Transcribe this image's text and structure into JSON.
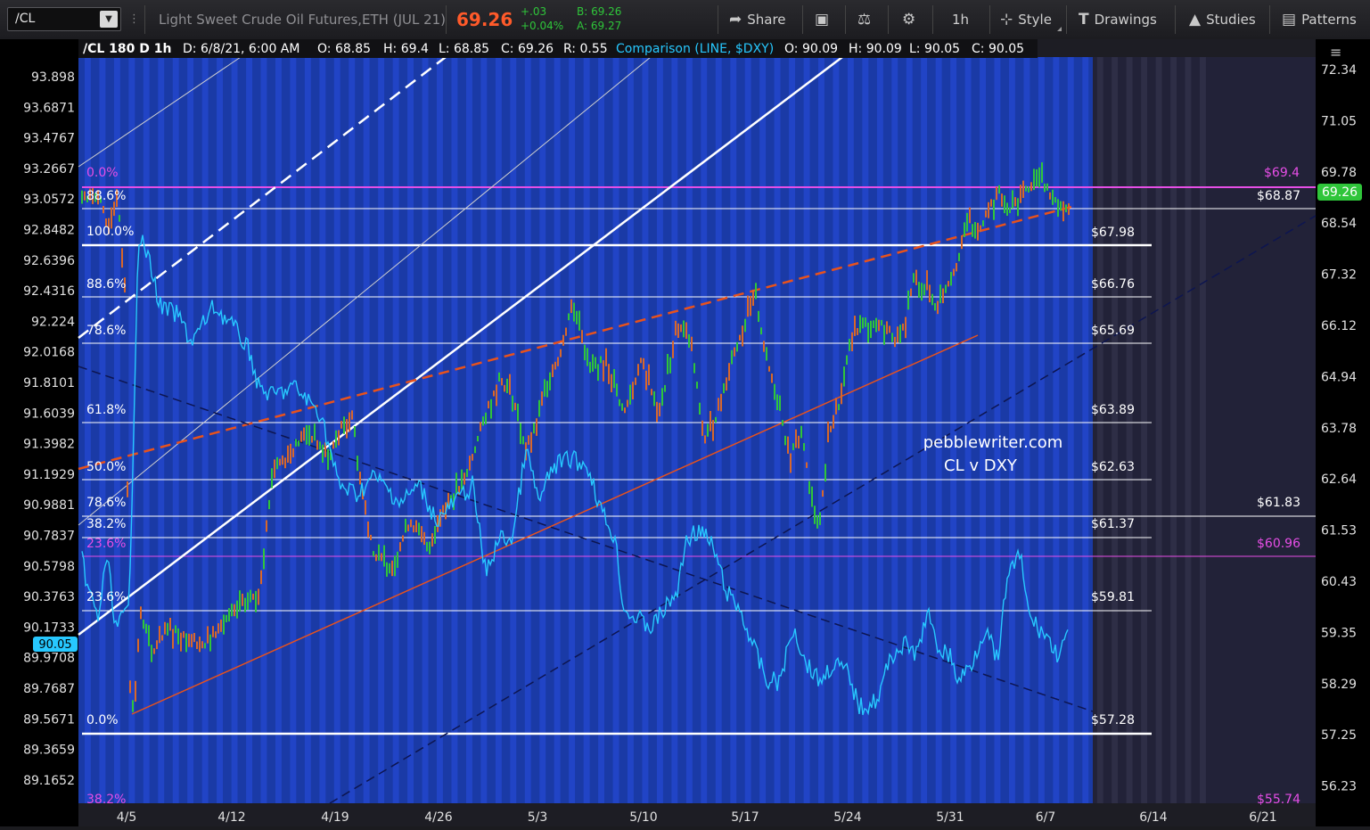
{
  "toolbar": {
    "symbol": "/CL",
    "title": "Light Sweet Crude Oil Futures,ETH (JUL 21)",
    "last": "69.26",
    "change": "+.03",
    "change_pct": "+0.04%",
    "bid": "B: 69.26",
    "ask": "A: 69.27",
    "share": "Share",
    "interval": "1h",
    "style": "Style",
    "drawings": "Drawings",
    "studies": "Studies",
    "patterns": "Patterns"
  },
  "legend": {
    "symbol": "/CL 180 D 1h",
    "date": "D: 6/8/21, 6:00 AM",
    "open": "O: 68.85",
    "high": "H: 69.4",
    "low": "L: 68.85",
    "close": "C: 69.26",
    "range": "R: 0.55",
    "comparison": "Comparison (LINE, $DXY)",
    "cmp_open": "O: 90.09",
    "cmp_high": "H: 90.09",
    "cmp_low": "L: 90.05",
    "cmp_close": "C: 90.05"
  },
  "watermark": [
    "pebblewriter.com",
    "CL v DXY"
  ],
  "left_axis": [
    "93.898",
    "93.6871",
    "93.4767",
    "93.2667",
    "93.0572",
    "92.8482",
    "92.6396",
    "92.4316",
    "92.224",
    "92.0168",
    "91.8101",
    "91.6039",
    "91.3982",
    "91.1929",
    "90.9881",
    "90.7837",
    "90.5798",
    "90.3763",
    "90.1733",
    "89.9708",
    "89.7687",
    "89.5671",
    "89.3659",
    "89.1652"
  ],
  "left_current": "90.05",
  "right_axis": [
    "72.34",
    "71.05",
    "69.78",
    "68.54",
    "67.32",
    "66.12",
    "64.94",
    "63.78",
    "62.64",
    "61.53",
    "60.43",
    "59.35",
    "58.29",
    "57.25",
    "56.23"
  ],
  "right_current": "69.26",
  "x_axis": [
    "4/5",
    "4/12",
    "4/19",
    "4/26",
    "5/3",
    "5/10",
    "5/17",
    "5/24",
    "5/31",
    "6/7",
    "6/14",
    "6/21"
  ],
  "fib_levels": [
    {
      "pct": "0.0%",
      "color": "#e64ee6"
    },
    {
      "pct": "88.6%",
      "color": "#ffffff"
    },
    {
      "pct": "100.0%",
      "color": "#ffffff"
    },
    {
      "pct": "88.6%",
      "color": "#ffffff"
    },
    {
      "pct": "78.6%",
      "color": "#ffffff"
    },
    {
      "pct": "61.8%",
      "color": "#ffffff"
    },
    {
      "pct": "50.0%",
      "color": "#ffffff"
    },
    {
      "pct": "78.6%",
      "color": "#ffffff"
    },
    {
      "pct": "38.2%",
      "color": "#ffffff"
    },
    {
      "pct": "23.6%",
      "color": "#e64ee6"
    },
    {
      "pct": "23.6%",
      "color": "#ffffff"
    },
    {
      "pct": "0.0%",
      "color": "#ffffff"
    },
    {
      "pct": "38.2%",
      "color": "#e64ee6"
    }
  ],
  "price_levels": [
    {
      "label": "$69.4",
      "color": "#e64ee6"
    },
    {
      "label": "$68.87",
      "color": "#ffffff"
    },
    {
      "label": "$67.98",
      "color": "#ffffff"
    },
    {
      "label": "$66.76",
      "color": "#ffffff"
    },
    {
      "label": "$65.69",
      "color": "#ffffff"
    },
    {
      "label": "$63.89",
      "color": "#ffffff"
    },
    {
      "label": "$62.63",
      "color": "#ffffff"
    },
    {
      "label": "$61.83",
      "color": "#ffffff"
    },
    {
      "label": "$61.37",
      "color": "#ffffff"
    },
    {
      "label": "$60.96",
      "color": "#e64ee6"
    },
    {
      "label": "$59.81",
      "color": "#ffffff"
    },
    {
      "label": "$57.28",
      "color": "#ffffff"
    },
    {
      "label": "$55.74",
      "color": "#e64ee6"
    }
  ],
  "colors": {
    "background_blue": "#1a3aa6",
    "session_stripe": "#2448d0",
    "future_bg": "#222238",
    "dxy_line": "#27c8ff",
    "candle_up": "#2fc53a",
    "candle_down": "#d8672a",
    "trend_orange": "#e8521c",
    "magenta": "#e64ee6"
  }
}
